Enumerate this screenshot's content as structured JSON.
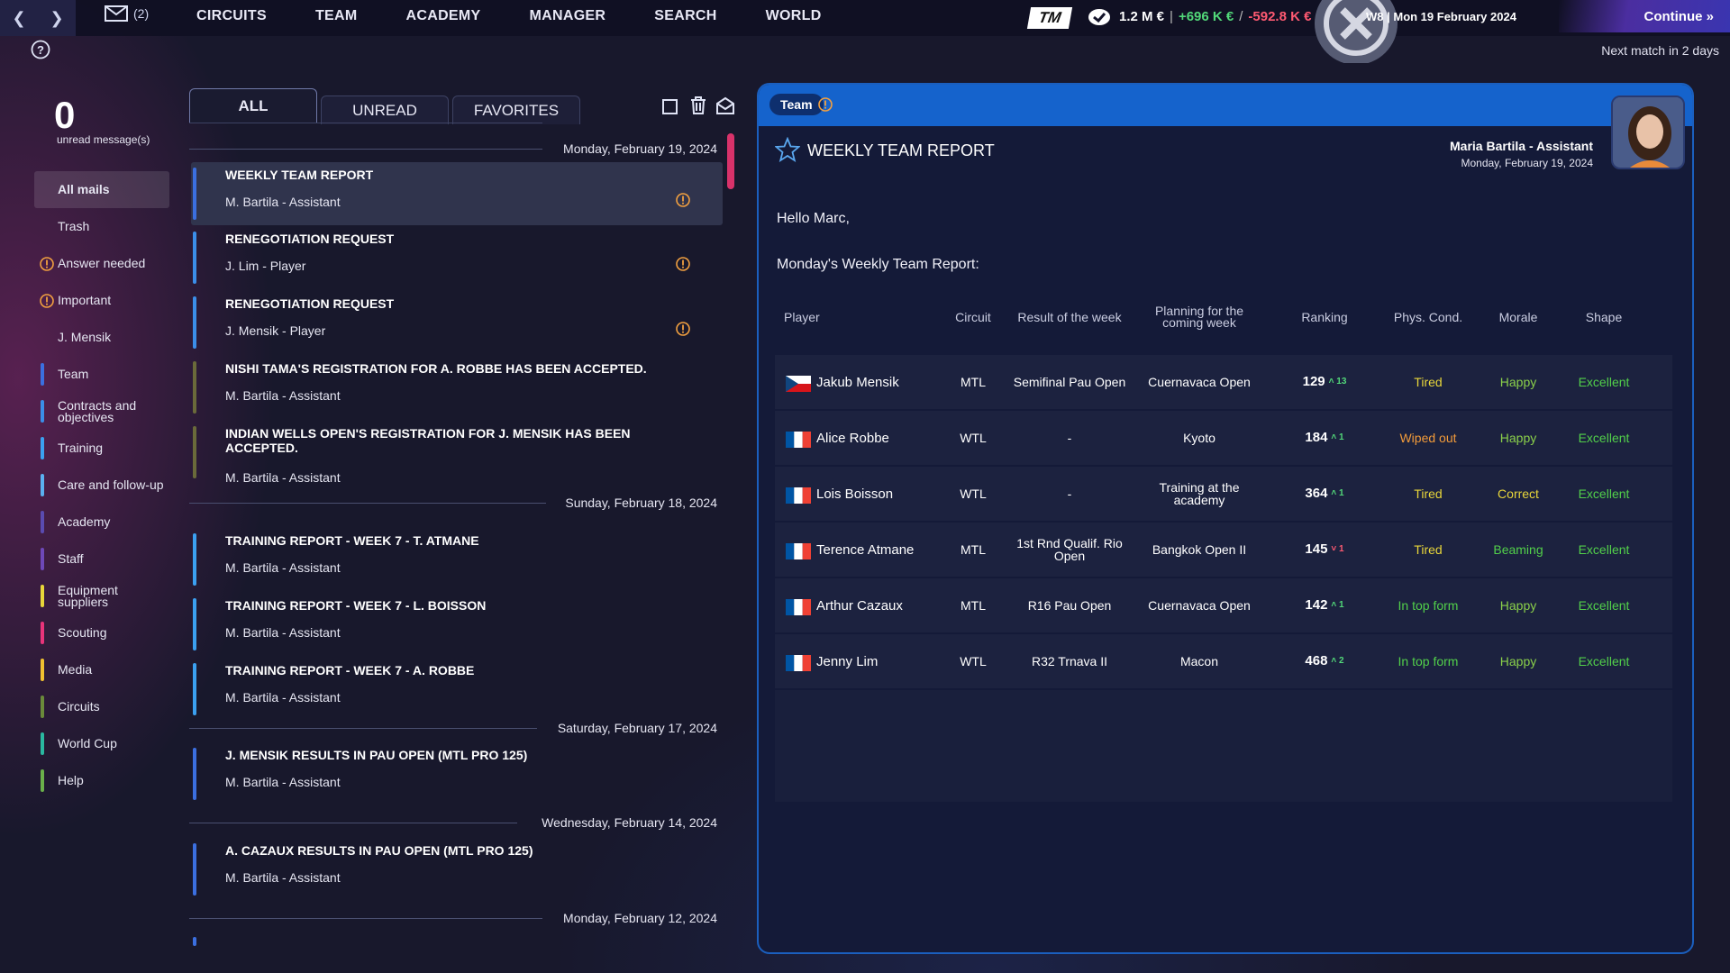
{
  "topbar": {
    "mail_count": "(2)",
    "nav": [
      "CIRCUITS",
      "TEAM",
      "ACADEMY",
      "MANAGER",
      "SEARCH",
      "WORLD"
    ],
    "logo": "TM",
    "balance": "1.2 M €",
    "income": "+696 K €",
    "expenses": "-592.8 K €",
    "week_info": "W8 | Mon 19 February 2024",
    "continue_label": "Continue",
    "next_match": "Next match in 2 days",
    "income_color": "#52d879",
    "expense_color": "#ff5a72"
  },
  "sidebar": {
    "unread_count": "0",
    "unread_label": "unread message(s)",
    "folders": [
      {
        "label": "All mails",
        "active": true
      },
      {
        "label": "Trash"
      },
      {
        "label": "Answer needed",
        "icon": "exclamation-icon"
      },
      {
        "label": "Important",
        "icon": "exclamation-icon"
      },
      {
        "label": "J. Mensik"
      },
      {
        "label": "Team",
        "color": "#3b6fe0"
      },
      {
        "label": "Contracts and objectives",
        "color": "#3b8ee8"
      },
      {
        "label": "Training",
        "color": "#3ba0f0"
      },
      {
        "label": "Care and follow-up",
        "color": "#5ab0f0"
      },
      {
        "label": "Academy",
        "color": "#5a4bb0"
      },
      {
        "label": "Staff",
        "color": "#6e48b8"
      },
      {
        "label": "Equipment suppliers",
        "color": "#e8d63a"
      },
      {
        "label": "Scouting",
        "color": "#e8347a"
      },
      {
        "label": "Media",
        "color": "#f0c030"
      },
      {
        "label": "Circuits",
        "color": "#6a8a3a"
      },
      {
        "label": "World Cup",
        "color": "#2ab8a0"
      },
      {
        "label": "Help",
        "color": "#6ab04a"
      }
    ]
  },
  "mail_tabs": {
    "all": "ALL",
    "unread": "UNREAD",
    "favorites": "FAVORITES"
  },
  "mail_groups": [
    {
      "date": "Monday, February 19, 2024",
      "mails": [
        {
          "subject": "WEEKLY TEAM REPORT",
          "from": "M. Bartila - Assistant",
          "important": true,
          "selected": true,
          "color": "#3b6fe0"
        },
        {
          "subject": "RENEGOTIATION REQUEST",
          "from": "J. Lim - Player",
          "important": true,
          "color": "#3b8ee8"
        },
        {
          "subject": "RENEGOTIATION REQUEST",
          "from": "J. Mensik - Player",
          "important": true,
          "color": "#3b8ee8"
        },
        {
          "subject": "NISHI TAMA'S REGISTRATION FOR A. ROBBE HAS BEEN ACCEPTED.",
          "from": "M. Bartila - Assistant",
          "color": "#6a6a3a"
        },
        {
          "subject": "INDIAN WELLS OPEN'S REGISTRATION FOR J. MENSIK HAS BEEN ACCEPTED.",
          "from": "M. Bartila - Assistant",
          "color": "#6a6a3a"
        }
      ]
    },
    {
      "date": "Sunday, February 18, 2024",
      "mails": [
        {
          "subject": "TRAINING REPORT - WEEK 7 - T. ATMANE",
          "from": "M. Bartila - Assistant",
          "color": "#3ba0f0"
        },
        {
          "subject": "TRAINING REPORT - WEEK 7 - L. BOISSON",
          "from": "M. Bartila - Assistant",
          "color": "#3ba0f0"
        },
        {
          "subject": "TRAINING REPORT - WEEK 7 - A. ROBBE",
          "from": "M. Bartila - Assistant",
          "color": "#3ba0f0"
        }
      ]
    },
    {
      "date": "Saturday, February 17, 2024",
      "mails": [
        {
          "subject": "J. MENSIK RESULTS IN PAU OPEN (MTL PRO 125)",
          "from": "M. Bartila - Assistant",
          "color": "#3b6fe0"
        }
      ]
    },
    {
      "date": "Wednesday, February 14, 2024",
      "mails": [
        {
          "subject": "A. CAZAUX RESULTS IN PAU OPEN (MTL PRO 125)",
          "from": "M. Bartila - Assistant",
          "color": "#3b6fe0"
        }
      ]
    },
    {
      "date": "Monday, February 12, 2024",
      "mails": []
    }
  ],
  "report": {
    "tag": "Team",
    "title": "WEEKLY TEAM REPORT",
    "sender": "Maria Bartila - Assistant",
    "date": "Monday, February 19, 2024",
    "greeting": "Hello Marc,",
    "intro": "Monday's Weekly Team Report:",
    "columns": [
      "Player",
      "Circuit",
      "Result of the week",
      "Planning for the coming week",
      "Ranking",
      "Phys. Cond.",
      "Morale",
      "Shape"
    ],
    "rows": [
      {
        "flag": "CZ",
        "player": "Jakub Mensik",
        "circuit": "MTL",
        "result": "Semifinal Pau Open",
        "planning": "Cuernavaca Open",
        "ranking": "129",
        "rank_delta": "13",
        "rank_dir": "up",
        "phys": "Tired",
        "phys_color": "#e8d63a",
        "morale": "Happy",
        "morale_color": "#8ad04a",
        "shape": "Excellent",
        "shape_color": "#52d04a"
      },
      {
        "flag": "FR",
        "player": "Alice Robbe",
        "circuit": "WTL",
        "result": "-",
        "planning": "Kyoto",
        "ranking": "184",
        "rank_delta": "1",
        "rank_dir": "up",
        "phys": "Wiped out",
        "phys_color": "#f09a3a",
        "morale": "Happy",
        "morale_color": "#8ad04a",
        "shape": "Excellent",
        "shape_color": "#52d04a"
      },
      {
        "flag": "FR",
        "player": "Lois Boisson",
        "circuit": "WTL",
        "result": "-",
        "planning": "Training at the academy",
        "ranking": "364",
        "rank_delta": "1",
        "rank_dir": "up",
        "phys": "Tired",
        "phys_color": "#e8d63a",
        "morale": "Correct",
        "morale_color": "#e8d63a",
        "shape": "Excellent",
        "shape_color": "#52d04a"
      },
      {
        "flag": "FR",
        "player": "Terence Atmane",
        "circuit": "MTL",
        "result": "1st Rnd Qualif. Rio Open",
        "planning": "Bangkok Open II",
        "ranking": "145",
        "rank_delta": "1",
        "rank_dir": "down",
        "phys": "Tired",
        "phys_color": "#e8d63a",
        "morale": "Beaming",
        "morale_color": "#52d04a",
        "shape": "Excellent",
        "shape_color": "#52d04a"
      },
      {
        "flag": "FR",
        "player": "Arthur Cazaux",
        "circuit": "MTL",
        "result": "R16 Pau Open",
        "planning": "Cuernavaca Open",
        "ranking": "142",
        "rank_delta": "1",
        "rank_dir": "up",
        "phys": "In top form",
        "phys_color": "#52d04a",
        "morale": "Happy",
        "morale_color": "#8ad04a",
        "shape": "Excellent",
        "shape_color": "#52d04a"
      },
      {
        "flag": "FR",
        "player": "Jenny Lim",
        "circuit": "WTL",
        "result": "R32 Trnava II",
        "planning": "Macon",
        "ranking": "468",
        "rank_delta": "2",
        "rank_dir": "up",
        "phys": "In top form",
        "phys_color": "#52d04a",
        "morale": "Happy",
        "morale_color": "#8ad04a",
        "shape": "Excellent",
        "shape_color": "#52d04a"
      }
    ]
  }
}
